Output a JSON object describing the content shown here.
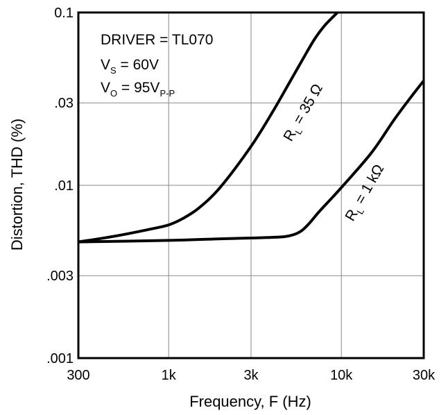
{
  "chart_data": {
    "type": "line",
    "xlabel": "Frequency, F (Hz)",
    "ylabel": "Distortion, THD (%)",
    "x_scale": "log",
    "y_scale": "log",
    "xlim": [
      300,
      30000
    ],
    "ylim": [
      0.001,
      0.1
    ],
    "grid": true,
    "x_ticks": [
      {
        "value": 300,
        "label": "300"
      },
      {
        "value": 1000,
        "label": "1k"
      },
      {
        "value": 3000,
        "label": "3k"
      },
      {
        "value": 10000,
        "label": "10k"
      },
      {
        "value": 30000,
        "label": "30k"
      }
    ],
    "y_ticks": [
      {
        "value": 0.001,
        "label": ".001"
      },
      {
        "value": 0.003,
        "label": ".003"
      },
      {
        "value": 0.01,
        "label": ".01"
      },
      {
        "value": 0.03,
        "label": ".03"
      },
      {
        "value": 0.1,
        "label": "0.1"
      }
    ],
    "annotations": {
      "driver": "DRIVER = TL070",
      "vs": {
        "main": "V",
        "sub": "S",
        "rest": " = 60V"
      },
      "vo": {
        "main": "V",
        "sub": "O",
        "rest": " = 95V",
        "sub2": "P-P"
      }
    },
    "series": [
      {
        "label": {
          "main": "R",
          "sub": "L",
          "rest": " = 35 Ω"
        },
        "points": [
          [
            300,
            0.0047
          ],
          [
            500,
            0.0051
          ],
          [
            800,
            0.0056
          ],
          [
            1000,
            0.0059
          ],
          [
            1200,
            0.0064
          ],
          [
            1500,
            0.0074
          ],
          [
            2000,
            0.0098
          ],
          [
            3000,
            0.0168
          ],
          [
            4000,
            0.0266
          ],
          [
            5000,
            0.0392
          ],
          [
            6000,
            0.054
          ],
          [
            7000,
            0.0701
          ],
          [
            8000,
            0.084
          ],
          [
            9500,
            0.1
          ]
        ]
      },
      {
        "label": {
          "main": "R",
          "sub": "L",
          "rest": " = 1 kΩ"
        },
        "points": [
          [
            300,
            0.0047
          ],
          [
            1000,
            0.0048
          ],
          [
            2000,
            0.0049
          ],
          [
            4000,
            0.005
          ],
          [
            5000,
            0.0051
          ],
          [
            5800,
            0.0054
          ],
          [
            6500,
            0.006
          ],
          [
            7500,
            0.0071
          ],
          [
            10000,
            0.0097
          ],
          [
            15000,
            0.0155
          ],
          [
            20000,
            0.0236
          ],
          [
            25000,
            0.0319
          ],
          [
            30000,
            0.0403
          ]
        ]
      }
    ]
  }
}
